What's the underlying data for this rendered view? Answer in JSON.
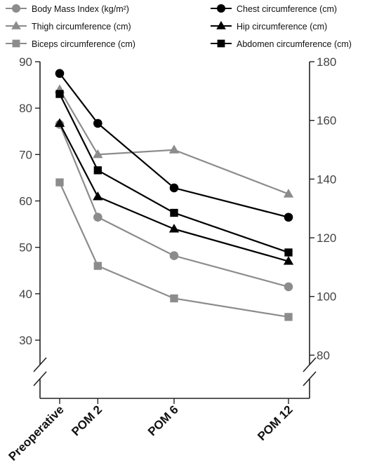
{
  "chart_data": {
    "type": "line",
    "categories": [
      "Preoperative",
      "POM 2",
      "POM 6",
      "POM 12"
    ],
    "x_positions": [
      0,
      2,
      6,
      12
    ],
    "left_axis": {
      "ylim": [
        25,
        90
      ],
      "ticks": [
        30,
        40,
        50,
        60,
        70,
        80,
        90
      ],
      "break_below": true
    },
    "right_axis": {
      "ylim": [
        75,
        180
      ],
      "ticks": [
        80,
        100,
        120,
        140,
        160,
        180
      ],
      "break_below": true
    },
    "legend_placement": "top",
    "series": [
      {
        "name": "Body Mass Index (kg/m²)",
        "axis": "left",
        "marker": "circle",
        "color": "#8c8c8c",
        "values": [
          76.5,
          56.5,
          48.2,
          41.5
        ]
      },
      {
        "name": "Thigh circumference (cm)",
        "axis": "left",
        "marker": "triangle",
        "color": "#8c8c8c",
        "values": [
          84,
          70,
          71,
          61.5
        ]
      },
      {
        "name": "Biceps circumference (cm)",
        "axis": "left",
        "marker": "square",
        "color": "#8c8c8c",
        "values": [
          64,
          46,
          39,
          35
        ]
      },
      {
        "name": "Chest circumference (cm)",
        "axis": "right",
        "marker": "circle",
        "color": "#000000",
        "values": [
          176,
          159,
          137,
          127
        ]
      },
      {
        "name": "Hip circumference (cm)",
        "axis": "right",
        "marker": "triangle",
        "color": "#000000",
        "values": [
          159,
          134,
          123,
          112
        ]
      },
      {
        "name": "Abdomen circumference (cm)",
        "axis": "right",
        "marker": "square",
        "color": "#000000",
        "values": [
          169,
          143,
          128.5,
          115
        ]
      }
    ]
  }
}
